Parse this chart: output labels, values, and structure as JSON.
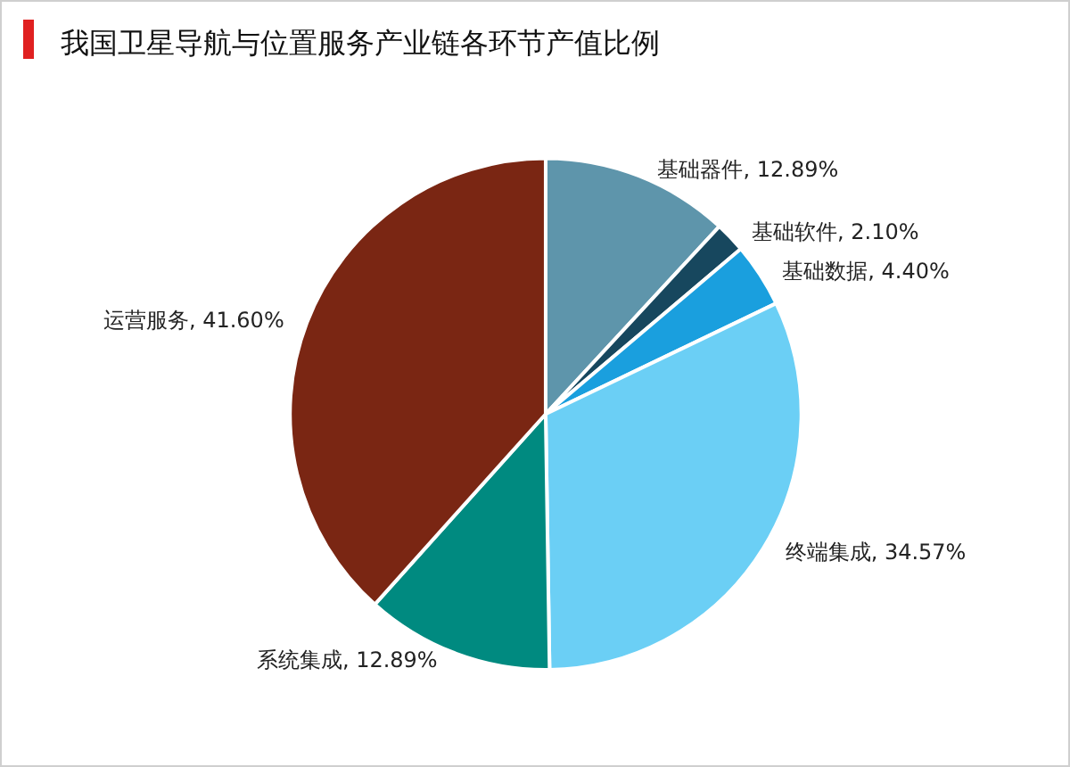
{
  "chart_data": {
    "type": "pie",
    "title": "我国卫星导航与位置服务产业链各环节产值比例",
    "categories": [
      "基础器件",
      "基础软件",
      "基础数据",
      "终端集成",
      "系统集成",
      "运营服务"
    ],
    "values": [
      12.89,
      2.1,
      4.4,
      34.57,
      12.89,
      41.6
    ],
    "value_labels": [
      "12.89%",
      "2.10%",
      "4.40%",
      "34.57%",
      "12.89%",
      "41.60%"
    ],
    "colors": [
      "#5e95ab",
      "#17475e",
      "#1a9fde",
      "#6bcff5",
      "#008a80",
      "#7a2613"
    ],
    "legend": false
  }
}
